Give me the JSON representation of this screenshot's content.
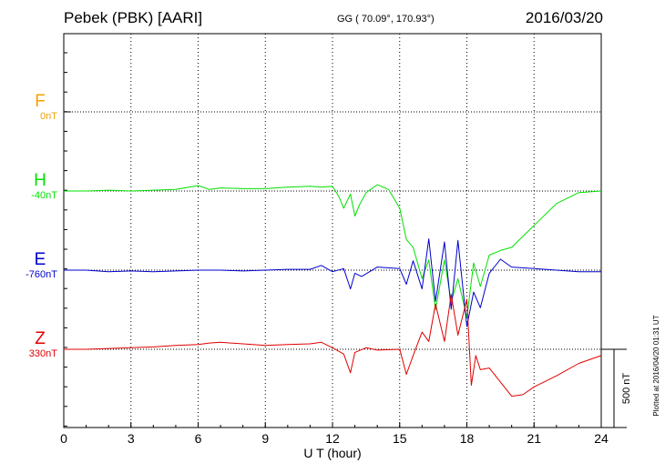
{
  "header": {
    "station": "Pebek (PBK)  [AARI]",
    "coords": "GG ( 70.09°, 170.93°)",
    "date": "2016/03/20"
  },
  "side_note": "Plotted at 2016/04/20 01:31 UT",
  "chart_data": {
    "type": "line",
    "xlabel": "U T (hour)",
    "xlim": [
      0,
      24
    ],
    "xticks": [
      "0",
      "3",
      "6",
      "9",
      "12",
      "15",
      "18",
      "21",
      "24"
    ],
    "scale_label": "500 nT",
    "components": [
      {
        "name": "F",
        "baseline": "0nT",
        "color": "#f5a000"
      },
      {
        "name": "H",
        "baseline": "-40nT",
        "color": "#00e000"
      },
      {
        "name": "E",
        "baseline": "-760nT",
        "color": "#0000cc"
      },
      {
        "name": "Z",
        "baseline": "330nT",
        "color": "#e00000"
      }
    ],
    "series": [
      {
        "name": "H",
        "color": "#00e000",
        "x": [
          0,
          1,
          2,
          3,
          4,
          5,
          6,
          6.5,
          7,
          8,
          9,
          10,
          11,
          11.5,
          12,
          12.3,
          12.5,
          12.8,
          13,
          13.2,
          13.5,
          14,
          14.5,
          15,
          15.3,
          15.6,
          16,
          16.3,
          16.6,
          17,
          17.3,
          17.6,
          18,
          18.3,
          18.6,
          19,
          19.5,
          20,
          21,
          22,
          23,
          24
        ],
        "values": [
          -40,
          -40,
          -35,
          -40,
          -35,
          -30,
          -5,
          -30,
          -20,
          -25,
          -25,
          -15,
          -10,
          -15,
          -10,
          -80,
          -150,
          -60,
          -200,
          -130,
          -50,
          0,
          -30,
          -150,
          -350,
          -400,
          -600,
          -480,
          -800,
          -480,
          -750,
          -600,
          -850,
          -500,
          -650,
          -450,
          -420,
          -400,
          -260,
          -120,
          -50,
          -40
        ]
      },
      {
        "name": "E",
        "color": "#0000cc",
        "x": [
          0,
          1,
          2,
          3,
          4,
          5,
          6,
          7,
          8,
          9,
          10,
          11,
          11.5,
          12,
          12.5,
          12.8,
          13,
          13.3,
          14,
          15,
          15.3,
          15.6,
          16,
          16.3,
          16.6,
          17,
          17.3,
          17.6,
          18,
          18.3,
          18.6,
          19,
          19.5,
          20,
          21,
          22,
          23,
          24
        ],
        "values": [
          -760,
          -760,
          -770,
          -765,
          -770,
          -765,
          -760,
          -760,
          -765,
          -760,
          -755,
          -755,
          -730,
          -770,
          -750,
          -880,
          -780,
          -800,
          -740,
          -750,
          -850,
          -700,
          -880,
          -560,
          -960,
          -580,
          -1010,
          -570,
          -1120,
          -900,
          -1000,
          -780,
          -690,
          -740,
          -750,
          -760,
          -770,
          -770
        ]
      },
      {
        "name": "Z",
        "color": "#e00000",
        "x": [
          0,
          1,
          2,
          3,
          4,
          5,
          6,
          6.5,
          7,
          8,
          9,
          10,
          11,
          11.5,
          12,
          12.5,
          12.8,
          13,
          13.5,
          14,
          15,
          15.3,
          15.6,
          16,
          16.3,
          16.6,
          17,
          17.3,
          17.6,
          18,
          18.2,
          18.4,
          18.6,
          19,
          19.5,
          20,
          20.5,
          21,
          22,
          23,
          24
        ],
        "values": [
          330,
          330,
          335,
          340,
          345,
          355,
          360,
          370,
          375,
          365,
          355,
          360,
          365,
          375,
          340,
          300,
          180,
          310,
          340,
          325,
          330,
          170,
          290,
          440,
          380,
          620,
          380,
          680,
          420,
          650,
          100,
          290,
          200,
          210,
          120,
          30,
          40,
          90,
          160,
          240,
          290
        ]
      }
    ]
  }
}
